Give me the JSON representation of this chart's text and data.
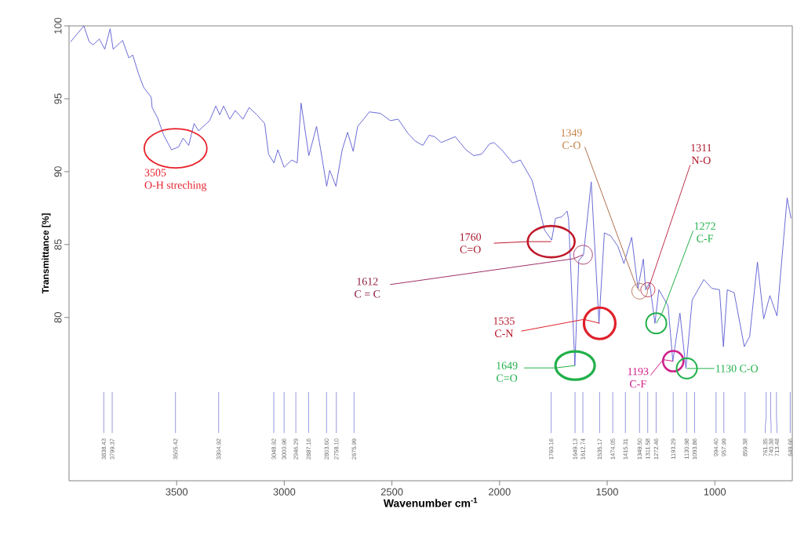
{
  "chart_data": {
    "type": "line",
    "xlabel": "Wavenumber cm$^{-1}$",
    "ylabel": "Transmittance [%]",
    "x": [
      3993,
      3931,
      3906,
      3888,
      3859,
      3834,
      3809,
      3795,
      3751,
      3722,
      3704,
      3679,
      3654,
      3618,
      3614,
      3589,
      3560,
      3524,
      3491,
      3470,
      3444,
      3419,
      3398,
      3347,
      3318,
      3300,
      3282,
      3253,
      3228,
      3192,
      3163,
      3127,
      3091,
      3073,
      3048,
      3030,
      3001,
      2965,
      2940,
      2922,
      2886,
      2850,
      2832,
      2803,
      2789,
      2760,
      2731,
      2706,
      2680,
      2659,
      2626,
      2605,
      2554,
      2507,
      2471,
      2424,
      2392,
      2356,
      2327,
      2302,
      2271,
      2206,
      2156,
      2120,
      2083,
      2047,
      2026,
      1990,
      1939,
      1903,
      1849,
      1809,
      1791,
      1758,
      1740,
      1711,
      1686,
      1679,
      1650,
      1632,
      1610,
      1574,
      1538,
      1513,
      1484,
      1451,
      1422,
      1386,
      1357,
      1332,
      1321,
      1303,
      1278,
      1260,
      1217,
      1195,
      1162,
      1134,
      1105,
      1051,
      1014,
      978,
      960,
      942,
      910,
      863,
      838,
      802,
      773,
      744,
      711,
      664,
      646
    ],
    "values": [
      98.9,
      100,
      98.9,
      98.7,
      99.1,
      98.4,
      99.8,
      98.4,
      99.0,
      97.8,
      98.0,
      96.8,
      95.8,
      95.1,
      94.4,
      93.7,
      92.5,
      91.5,
      91.7,
      92.3,
      91.8,
      93.3,
      92.8,
      93.5,
      94.5,
      93.9,
      94.5,
      93.6,
      94.2,
      93.6,
      94.4,
      93.9,
      93.3,
      91.2,
      90.6,
      91.5,
      90.3,
      90.8,
      90.6,
      94.7,
      91.1,
      93.1,
      91.6,
      89.0,
      90.1,
      89.0,
      91.5,
      92.7,
      91.4,
      93.1,
      93.7,
      94.1,
      94.0,
      93.5,
      93.6,
      92.6,
      92.1,
      91.8,
      92.5,
      92.4,
      92.0,
      92.4,
      91.5,
      91.1,
      91.2,
      91.9,
      92.0,
      91.5,
      90.6,
      90.8,
      89.4,
      87.1,
      86.0,
      85.3,
      86.8,
      86.9,
      87.3,
      86.7,
      76.7,
      83.9,
      84.3,
      89.3,
      79.6,
      85.8,
      85.6,
      84.9,
      83.7,
      85.5,
      82.0,
      84.0,
      81.9,
      82.4,
      79.6,
      81.9,
      80.8,
      77.0,
      80.3,
      76.5,
      81.2,
      82.6,
      82.0,
      81.9,
      78.0,
      81.9,
      81.7,
      78.0,
      78.7,
      83.8,
      79.9,
      81.5,
      80.1,
      88.2,
      86.8
    ],
    "color": "#5a5ad2",
    "line_style": "solid",
    "xlim": [
      4000,
      640
    ],
    "ylim": [
      68.8,
      100
    ],
    "xticks": [
      3500,
      3000,
      2500,
      2000,
      1500,
      1000
    ],
    "yticks": [
      80,
      85,
      90,
      95,
      100
    ],
    "annotations": [
      {
        "text": "3505",
        "x": 3505,
        "y": 91.6
      },
      {
        "text": "O-H streching",
        "x": 3505,
        "y": 91.6
      },
      {
        "text": "1760",
        "x": 1760,
        "y": 85.2
      },
      {
        "text": "C=O",
        "x": 1760,
        "y": 85.2
      },
      {
        "text": "1612",
        "x": 1612,
        "y": 84.3
      },
      {
        "text": "C = C",
        "x": 1612,
        "y": 84.3
      },
      {
        "text": "1535",
        "x": 1535,
        "y": 79.6
      },
      {
        "text": "C-N",
        "x": 1535,
        "y": 79.6
      },
      {
        "text": "1649",
        "x": 1649,
        "y": 76.7
      },
      {
        "text": "C=O",
        "x": 1649,
        "y": 76.7
      },
      {
        "text": "1349",
        "x": 1349,
        "y": 81.8
      },
      {
        "text": "C-O",
        "x": 1349,
        "y": 81.8
      },
      {
        "text": "1311",
        "x": 1311,
        "y": 81.9
      },
      {
        "text": "N-O",
        "x": 1311,
        "y": 81.9
      },
      {
        "text": "1272",
        "x": 1272,
        "y": 79.6
      },
      {
        "text": "C-F",
        "x": 1272,
        "y": 79.6
      },
      {
        "text": "1193",
        "x": 1193,
        "y": 77.0
      },
      {
        "text": "C-F",
        "x": 1193,
        "y": 77.0
      },
      {
        "text": "1130 C-O",
        "x": 1130,
        "y": 76.5
      }
    ],
    "ref_lines": [
      {
        "axis": "x",
        "value": 3838.43,
        "label": "3838.43",
        "color": "#8c8cdc"
      },
      {
        "axis": "x",
        "value": 3799.37,
        "label": "3799.37",
        "color": "#8c8cdc"
      },
      {
        "axis": "x",
        "value": 3505.42,
        "label": "3505.42",
        "color": "#8c8cdc"
      },
      {
        "axis": "x",
        "value": 3304.92,
        "label": "3304.92",
        "color": "#8c8cdc"
      },
      {
        "axis": "x",
        "value": 3048.92,
        "label": "3048.92",
        "color": "#8c8cdc"
      },
      {
        "axis": "x",
        "value": 3000.96,
        "label": "3000.96",
        "color": "#8c8cdc"
      },
      {
        "axis": "x",
        "value": 2946.29,
        "label": "2946.29",
        "color": "#8c8cdc"
      },
      {
        "axis": "x",
        "value": 2887.16,
        "label": "2887.16",
        "color": "#8c8cdc"
      },
      {
        "axis": "x",
        "value": 2803.6,
        "label": "2803.60",
        "color": "#8c8cdc"
      },
      {
        "axis": "x",
        "value": 2758.1,
        "label": "2758.10",
        "color": "#8c8cdc"
      },
      {
        "axis": "x",
        "value": 2675.99,
        "label": "2675.99",
        "color": "#8c8cdc"
      },
      {
        "axis": "x",
        "value": 1760.16,
        "label": "1760.16",
        "color": "#8c8cdc"
      },
      {
        "axis": "x",
        "value": 1649.13,
        "label": "1649.13",
        "color": "#8c8cdc"
      },
      {
        "axis": "x",
        "value": 1612.74,
        "label": "1612.74",
        "color": "#8c8cdc"
      },
      {
        "axis": "x",
        "value": 1535.17,
        "label": "1535.17",
        "color": "#8c8cdc"
      },
      {
        "axis": "x",
        "value": 1474.05,
        "label": "1474.05",
        "color": "#8c8cdc"
      },
      {
        "axis": "x",
        "value": 1415.31,
        "label": "1415.31",
        "color": "#8c8cdc"
      },
      {
        "axis": "x",
        "value": 1349.5,
        "label": "1349.50",
        "color": "#8c8cdc"
      },
      {
        "axis": "x",
        "value": 1311.58,
        "label": "1311.58",
        "color": "#8c8cdc"
      },
      {
        "axis": "x",
        "value": 1272.46,
        "label": "1272.46",
        "color": "#8c8cdc"
      },
      {
        "axis": "x",
        "value": 1193.29,
        "label": "1193.29",
        "color": "#8c8cdc"
      },
      {
        "axis": "x",
        "value": 1130.98,
        "label": "1130.98",
        "color": "#8c8cdc"
      },
      {
        "axis": "x",
        "value": 1093.86,
        "label": "1093.86",
        "color": "#8c8cdc"
      },
      {
        "axis": "x",
        "value": 994.4,
        "label": "994.40",
        "color": "#8c8cdc"
      },
      {
        "axis": "x",
        "value": 957.99,
        "label": "957.99",
        "color": "#8c8cdc"
      },
      {
        "axis": "x",
        "value": 859.38,
        "label": "859.38",
        "color": "#8c8cdc"
      },
      {
        "axis": "x",
        "value": 761.35,
        "label": "761.35",
        "color": "#8c8cdc"
      },
      {
        "axis": "x",
        "value": 740.38,
        "label": "740.38",
        "color": "#8c8cdc"
      },
      {
        "axis": "x",
        "value": 713.48,
        "label": "713.48",
        "color": "#8c8cdc"
      },
      {
        "axis": "x",
        "value": 649.66,
        "label": "649.66",
        "color": "#8c8cdc"
      }
    ]
  }
}
